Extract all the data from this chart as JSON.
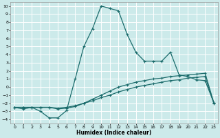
{
  "xlabel": "Humidex (Indice chaleur)",
  "bg_color": "#cceaea",
  "grid_color": "#ffffff",
  "line_color": "#1a6b6b",
  "xlim": [
    -0.5,
    23.5
  ],
  "ylim": [
    -4.5,
    10.5
  ],
  "xticks": [
    0,
    1,
    2,
    3,
    4,
    5,
    6,
    7,
    8,
    9,
    10,
    11,
    12,
    13,
    14,
    15,
    16,
    17,
    18,
    19,
    20,
    21,
    22,
    23
  ],
  "yticks": [
    -4,
    -3,
    -2,
    -1,
    0,
    1,
    2,
    3,
    4,
    5,
    6,
    7,
    8,
    9,
    10
  ],
  "line1_x": [
    0,
    1,
    2,
    3,
    4,
    5,
    6,
    7,
    8,
    9,
    10,
    11,
    12,
    13,
    14,
    15,
    16,
    17,
    18,
    19,
    20,
    21,
    22,
    23
  ],
  "line1_y": [
    -2.5,
    -2.7,
    -2.5,
    -3.0,
    -3.8,
    -3.8,
    -2.9,
    1.0,
    5.0,
    7.2,
    10.0,
    9.7,
    9.4,
    6.5,
    4.3,
    3.2,
    3.2,
    3.2,
    4.3,
    1.5,
    1.3,
    0.9,
    0.8,
    -1.9
  ],
  "line2_x": [
    0,
    1,
    2,
    3,
    4,
    5,
    6,
    7,
    8,
    9,
    10,
    11,
    12,
    13,
    14,
    15,
    16,
    17,
    18,
    19,
    20,
    21,
    22,
    23
  ],
  "line2_y": [
    -2.5,
    -2.5,
    -2.5,
    -2.5,
    -2.5,
    -2.7,
    -2.6,
    -2.4,
    -2.0,
    -1.5,
    -1.0,
    -0.5,
    0.0,
    0.3,
    0.6,
    0.8,
    1.0,
    1.1,
    1.3,
    1.4,
    1.5,
    1.6,
    1.7,
    -1.9
  ],
  "line3_x": [
    0,
    1,
    2,
    3,
    4,
    5,
    6,
    7,
    8,
    9,
    10,
    11,
    12,
    13,
    14,
    15,
    16,
    17,
    18,
    19,
    20,
    21,
    22,
    23
  ],
  "line3_y": [
    -2.5,
    -2.5,
    -2.5,
    -2.5,
    -2.5,
    -2.6,
    -2.5,
    -2.3,
    -2.0,
    -1.7,
    -1.3,
    -1.0,
    -0.6,
    -0.3,
    0.0,
    0.2,
    0.4,
    0.6,
    0.8,
    0.9,
    1.1,
    1.2,
    1.3,
    -2.0
  ]
}
